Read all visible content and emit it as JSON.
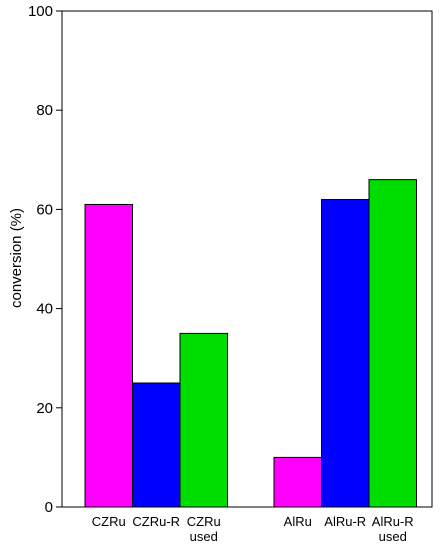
{
  "chart_data": {
    "type": "bar",
    "ylabel": "conversion (%)",
    "ylim": [
      0,
      100
    ],
    "yticks": [
      0,
      20,
      40,
      60,
      80,
      100
    ],
    "grid": false,
    "groups": [
      {
        "bars": [
          {
            "label": [
              "CZRu"
            ],
            "value": 61,
            "color": "#ff00ff"
          },
          {
            "label": [
              "CZRu-R"
            ],
            "value": 25,
            "color": "#0000ff"
          },
          {
            "label": [
              "CZRu",
              "used"
            ],
            "value": 35,
            "color": "#00dd00"
          }
        ]
      },
      {
        "bars": [
          {
            "label": [
              "AlRu"
            ],
            "value": 10,
            "color": "#ff00ff"
          },
          {
            "label": [
              "AlRu-R"
            ],
            "value": 62,
            "color": "#0000ff"
          },
          {
            "label": [
              "AlRu-R",
              "used"
            ],
            "value": 66,
            "color": "#00dd00"
          }
        ]
      }
    ]
  }
}
